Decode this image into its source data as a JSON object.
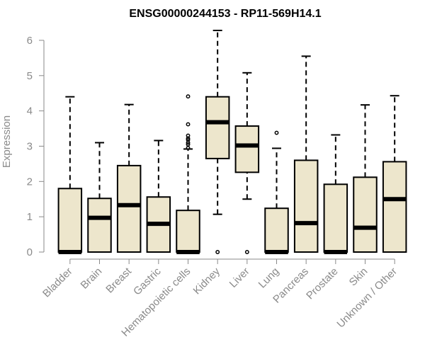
{
  "chart_data": {
    "type": "boxplot",
    "title": "ENSG00000244153 - RP11-569H14.1",
    "xlabel": "",
    "ylabel": "Expression",
    "ylim": [
      0,
      6.3
    ],
    "yticks": [
      0,
      1,
      2,
      3,
      4,
      5,
      6
    ],
    "categories": [
      "Bladder",
      "Brain",
      "Breast",
      "Gastric",
      "Hematopoietic cells",
      "Kidney",
      "Liver",
      "Lung",
      "Pancreas",
      "Prostate",
      "Skin",
      "Unknown / Other"
    ],
    "boxes": [
      {
        "whisker_low": 0,
        "q1": 0,
        "median": 0,
        "q3": 1.8,
        "whisker_high": 4.4,
        "outliers": []
      },
      {
        "whisker_low": 0,
        "q1": 0,
        "median": 0.97,
        "q3": 1.52,
        "whisker_high": 3.1,
        "outliers": []
      },
      {
        "whisker_low": 0,
        "q1": 0,
        "median": 1.33,
        "q3": 2.45,
        "whisker_high": 4.18,
        "outliers": []
      },
      {
        "whisker_low": 0,
        "q1": 0,
        "median": 0.8,
        "q3": 1.56,
        "whisker_high": 3.16,
        "outliers": []
      },
      {
        "whisker_low": 0,
        "q1": 0,
        "median": 0,
        "q3": 1.18,
        "whisker_high": 2.92,
        "outliers": [
          2.95,
          3.05,
          3.1,
          3.18,
          3.22,
          3.3,
          3.62,
          4.41
        ]
      },
      {
        "whisker_low": 1.07,
        "q1": 2.65,
        "median": 3.68,
        "q3": 4.4,
        "whisker_high": 6.28,
        "outliers": [
          0
        ]
      },
      {
        "whisker_low": 1.5,
        "q1": 2.26,
        "median": 3.02,
        "q3": 3.57,
        "whisker_high": 5.08,
        "outliers": [
          0
        ]
      },
      {
        "whisker_low": 0,
        "q1": 0,
        "median": 0,
        "q3": 1.24,
        "whisker_high": 2.94,
        "outliers": [
          3.38
        ]
      },
      {
        "whisker_low": 0,
        "q1": 0,
        "median": 0.82,
        "q3": 2.6,
        "whisker_high": 5.55,
        "outliers": []
      },
      {
        "whisker_low": 0,
        "q1": 0,
        "median": 0,
        "q3": 1.92,
        "whisker_high": 3.32,
        "outliers": []
      },
      {
        "whisker_low": 0,
        "q1": 0,
        "median": 0.69,
        "q3": 2.12,
        "whisker_high": 4.17,
        "outliers": []
      },
      {
        "whisker_low": 0,
        "q1": 0,
        "median": 1.5,
        "q3": 2.56,
        "whisker_high": 4.43,
        "outliers": []
      }
    ],
    "colors": {
      "box_fill": "#ede6cc",
      "box_stroke": "#000000",
      "median": "#000000",
      "axis": "#8a8a8a",
      "title": "#000000"
    },
    "grid": false,
    "legend": "none"
  }
}
